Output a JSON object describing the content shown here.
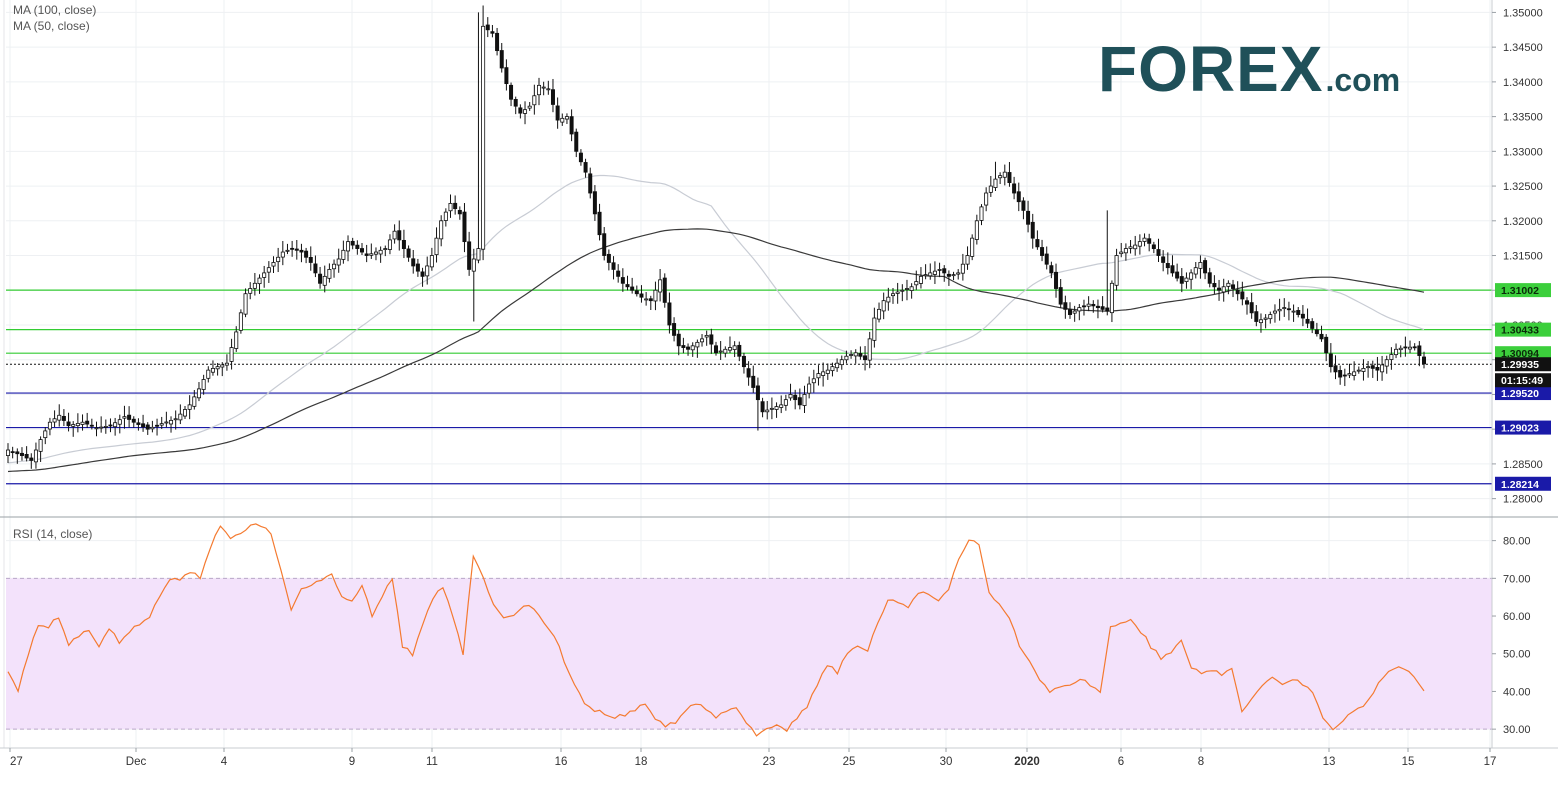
{
  "legend": {
    "ma100": "MA (100, close)",
    "ma50": "MA (50, close)",
    "rsi": "RSI (14, close)"
  },
  "logo": {
    "main": "FOREX",
    "suffix": ".com"
  },
  "colors": {
    "green_line": "#33cc33",
    "blue_line": "#1a1aa8",
    "rsi_line": "#f47a30",
    "rsi_band": "#f3e2fb",
    "ma100": "#3a3a3a",
    "ma50": "#c8ccd4",
    "up_candle": "#ffffff",
    "down_candle": "#111111",
    "last_price_bg": "#111111"
  },
  "chart_data": {
    "type": "candlestick",
    "price_axis": {
      "ylim": [
        1.2775,
        1.3515
      ],
      "ticks": [
        "1.35000",
        "1.34500",
        "1.34000",
        "1.33500",
        "1.33000",
        "1.32500",
        "1.32000",
        "1.31500",
        "1.31000",
        "1.30500",
        "1.30000",
        "1.29500",
        "1.29000",
        "1.28500",
        "1.28000"
      ]
    },
    "x_ticks": [
      "27",
      "Dec",
      "4",
      "9",
      "11",
      "16",
      "18",
      "23",
      "25",
      "30",
      "2020",
      "6",
      "8",
      "13",
      "15",
      "17"
    ],
    "horizontal_levels": [
      {
        "value": 1.31002,
        "label": "1.31002",
        "color": "green"
      },
      {
        "value": 1.30433,
        "label": "1.30433",
        "color": "green"
      },
      {
        "value": 1.30094,
        "label": "1.30094",
        "color": "green"
      },
      {
        "value": 1.2952,
        "label": "1.29520",
        "color": "blue"
      },
      {
        "value": 1.29023,
        "label": "1.29023",
        "color": "blue"
      },
      {
        "value": 1.28214,
        "label": "1.28214",
        "color": "blue"
      }
    ],
    "last_price": {
      "value": 1.29935,
      "label": "1.29935",
      "countdown": "01:15:49"
    },
    "price_anchors": [
      [
        0,
        1.287
      ],
      [
        3,
        1.2862
      ],
      [
        5,
        1.2855
      ],
      [
        7,
        1.2885
      ],
      [
        9,
        1.291
      ],
      [
        11,
        1.292
      ],
      [
        13,
        1.2905
      ],
      [
        16,
        1.291
      ],
      [
        19,
        1.2902
      ],
      [
        22,
        1.2905
      ],
      [
        25,
        1.2918
      ],
      [
        27,
        1.291
      ],
      [
        30,
        1.29
      ],
      [
        33,
        1.2908
      ],
      [
        36,
        1.2915
      ],
      [
        39,
        1.2935
      ],
      [
        41,
        1.2958
      ],
      [
        43,
        1.2985
      ],
      [
        45,
        1.299
      ],
      [
        47,
        1.2995
      ],
      [
        49,
        1.304
      ],
      [
        51,
        1.3095
      ],
      [
        53,
        1.311
      ],
      [
        55,
        1.3125
      ],
      [
        57,
        1.314
      ],
      [
        59,
        1.3155
      ],
      [
        61,
        1.316
      ],
      [
        63,
        1.3155
      ],
      [
        65,
        1.314
      ],
      [
        67,
        1.311
      ],
      [
        69,
        1.313
      ],
      [
        71,
        1.3145
      ],
      [
        73,
        1.317
      ],
      [
        75,
        1.316
      ],
      [
        77,
        1.315
      ],
      [
        79,
        1.3155
      ],
      [
        81,
        1.316
      ],
      [
        83,
        1.3185
      ],
      [
        85,
        1.316
      ],
      [
        87,
        1.3135
      ],
      [
        89,
        1.312
      ],
      [
        91,
        1.315
      ],
      [
        93,
        1.32
      ],
      [
        95,
        1.3225
      ],
      [
        97,
        1.321
      ],
      [
        99,
        1.313
      ],
      [
        101,
        1.316
      ],
      [
        102,
        1.348
      ],
      [
        104,
        1.347
      ],
      [
        106,
        1.342
      ],
      [
        108,
        1.3375
      ],
      [
        110,
        1.3355
      ],
      [
        112,
        1.3365
      ],
      [
        114,
        1.3395
      ],
      [
        116,
        1.339
      ],
      [
        118,
        1.3345
      ],
      [
        120,
        1.335
      ],
      [
        122,
        1.33
      ],
      [
        124,
        1.327
      ],
      [
        126,
        1.321
      ],
      [
        128,
        1.315
      ],
      [
        130,
        1.313
      ],
      [
        132,
        1.311
      ],
      [
        134,
        1.31
      ],
      [
        136,
        1.309
      ],
      [
        138,
        1.3085
      ],
      [
        140,
        1.3115
      ],
      [
        142,
        1.305
      ],
      [
        144,
        1.302
      ],
      [
        146,
        1.3015
      ],
      [
        148,
        1.3025
      ],
      [
        150,
        1.3035
      ],
      [
        152,
        1.301
      ],
      [
        154,
        1.3015
      ],
      [
        156,
        1.302
      ],
      [
        158,
        1.299
      ],
      [
        160,
        1.296
      ],
      [
        162,
        1.2925
      ],
      [
        164,
        1.293
      ],
      [
        166,
        1.2935
      ],
      [
        168,
        1.295
      ],
      [
        170,
        1.2935
      ],
      [
        172,
        1.2965
      ],
      [
        174,
        1.298
      ],
      [
        176,
        1.2985
      ],
      [
        178,
        1.2995
      ],
      [
        180,
        1.3005
      ],
      [
        182,
        1.301
      ],
      [
        184,
        1.3
      ],
      [
        186,
        1.306
      ],
      [
        188,
        1.3085
      ],
      [
        190,
        1.3095
      ],
      [
        192,
        1.31
      ],
      [
        194,
        1.3105
      ],
      [
        196,
        1.312
      ],
      [
        198,
        1.3125
      ],
      [
        200,
        1.313
      ],
      [
        202,
        1.312
      ],
      [
        204,
        1.3125
      ],
      [
        206,
        1.315
      ],
      [
        208,
        1.32
      ],
      [
        210,
        1.324
      ],
      [
        212,
        1.326
      ],
      [
        214,
        1.327
      ],
      [
        216,
        1.324
      ],
      [
        218,
        1.3215
      ],
      [
        220,
        1.3175
      ],
      [
        222,
        1.315
      ],
      [
        224,
        1.3125
      ],
      [
        226,
        1.308
      ],
      [
        228,
        1.3065
      ],
      [
        230,
        1.3075
      ],
      [
        232,
        1.308
      ],
      [
        234,
        1.3075
      ],
      [
        236,
        1.307
      ],
      [
        238,
        1.315
      ],
      [
        240,
        1.316
      ],
      [
        242,
        1.3165
      ],
      [
        244,
        1.3175
      ],
      [
        246,
        1.316
      ],
      [
        248,
        1.314
      ],
      [
        250,
        1.3125
      ],
      [
        252,
        1.311
      ],
      [
        254,
        1.3125
      ],
      [
        256,
        1.314
      ],
      [
        258,
        1.311
      ],
      [
        260,
        1.31
      ],
      [
        262,
        1.311
      ],
      [
        264,
        1.3095
      ],
      [
        266,
        1.308
      ],
      [
        268,
        1.3055
      ],
      [
        270,
        1.306
      ],
      [
        272,
        1.307
      ],
      [
        274,
        1.3075
      ],
      [
        276,
        1.307
      ],
      [
        278,
        1.306
      ],
      [
        280,
        1.3045
      ],
      [
        282,
        1.303
      ],
      [
        284,
        1.299
      ],
      [
        286,
        1.2975
      ],
      [
        288,
        1.298
      ],
      [
        290,
        1.2985
      ],
      [
        292,
        1.299
      ],
      [
        294,
        1.2985
      ],
      [
        296,
        1.3
      ],
      [
        298,
        1.3015
      ],
      [
        300,
        1.3018
      ],
      [
        302,
        1.3018
      ],
      [
        304,
        1.2994
      ]
    ],
    "rsi": {
      "title": "RSI (14, close)",
      "ylim": [
        25,
        86
      ],
      "ticks": [
        "80.00",
        "70.00",
        "60.00",
        "50.00",
        "40.00",
        "30.00"
      ],
      "band": [
        30,
        70
      ],
      "anchors": [
        [
          0,
          45
        ],
        [
          2,
          40
        ],
        [
          4,
          50
        ],
        [
          6,
          58
        ],
        [
          8,
          57
        ],
        [
          10,
          60
        ],
        [
          12,
          52
        ],
        [
          14,
          55
        ],
        [
          16,
          56
        ],
        [
          18,
          52
        ],
        [
          20,
          57
        ],
        [
          22,
          53
        ],
        [
          24,
          56
        ],
        [
          26,
          58
        ],
        [
          28,
          60
        ],
        [
          30,
          65
        ],
        [
          32,
          70
        ],
        [
          34,
          70
        ],
        [
          36,
          72
        ],
        [
          38,
          70
        ],
        [
          40,
          78
        ],
        [
          42,
          84
        ],
        [
          44,
          81
        ],
        [
          46,
          82
        ],
        [
          48,
          84
        ],
        [
          50,
          84
        ],
        [
          52,
          82
        ],
        [
          54,
          72
        ],
        [
          56,
          62
        ],
        [
          58,
          67
        ],
        [
          60,
          68
        ],
        [
          62,
          70
        ],
        [
          64,
          71
        ],
        [
          66,
          65
        ],
        [
          68,
          64
        ],
        [
          70,
          68
        ],
        [
          72,
          60
        ],
        [
          74,
          65
        ],
        [
          76,
          70
        ],
        [
          78,
          52
        ],
        [
          80,
          50
        ],
        [
          82,
          58
        ],
        [
          84,
          65
        ],
        [
          86,
          68
        ],
        [
          88,
          60
        ],
        [
          90,
          50
        ],
        [
          92,
          76
        ],
        [
          94,
          70
        ],
        [
          96,
          63
        ],
        [
          98,
          60
        ],
        [
          100,
          60
        ],
        [
          102,
          63
        ],
        [
          104,
          62
        ],
        [
          106,
          58
        ],
        [
          108,
          55
        ],
        [
          110,
          48
        ],
        [
          112,
          42
        ],
        [
          114,
          37
        ],
        [
          116,
          35
        ],
        [
          118,
          34
        ],
        [
          120,
          33
        ],
        [
          122,
          34
        ],
        [
          124,
          35
        ],
        [
          126,
          37
        ],
        [
          128,
          33
        ],
        [
          130,
          31
        ],
        [
          132,
          32
        ],
        [
          134,
          35
        ],
        [
          136,
          37
        ],
        [
          138,
          35
        ],
        [
          140,
          33
        ],
        [
          142,
          35
        ],
        [
          144,
          36
        ],
        [
          146,
          32
        ],
        [
          148,
          28
        ],
        [
          150,
          30
        ],
        [
          152,
          31
        ],
        [
          154,
          30
        ],
        [
          156,
          33
        ],
        [
          158,
          36
        ],
        [
          160,
          42
        ],
        [
          162,
          47
        ],
        [
          164,
          45
        ],
        [
          166,
          50
        ],
        [
          168,
          52
        ],
        [
          170,
          51
        ],
        [
          172,
          58
        ],
        [
          174,
          64
        ],
        [
          176,
          64
        ],
        [
          178,
          62
        ],
        [
          180,
          66
        ],
        [
          182,
          66
        ],
        [
          184,
          64
        ],
        [
          186,
          67
        ],
        [
          188,
          75
        ],
        [
          190,
          80
        ],
        [
          192,
          79
        ],
        [
          194,
          66
        ],
        [
          196,
          63
        ],
        [
          198,
          60
        ],
        [
          200,
          52
        ],
        [
          202,
          48
        ],
        [
          204,
          43
        ],
        [
          206,
          40
        ],
        [
          208,
          41
        ],
        [
          210,
          42
        ],
        [
          212,
          43
        ],
        [
          214,
          42
        ],
        [
          216,
          40
        ],
        [
          218,
          57
        ],
        [
          220,
          58
        ],
        [
          222,
          59
        ],
        [
          224,
          56
        ],
        [
          226,
          52
        ],
        [
          228,
          49
        ],
        [
          230,
          50
        ],
        [
          232,
          54
        ],
        [
          234,
          46
        ],
        [
          236,
          45
        ],
        [
          238,
          46
        ],
        [
          240,
          44
        ],
        [
          242,
          46
        ],
        [
          244,
          35
        ],
        [
          246,
          38
        ],
        [
          248,
          42
        ],
        [
          250,
          44
        ],
        [
          252,
          42
        ],
        [
          254,
          43
        ],
        [
          256,
          42
        ],
        [
          258,
          40
        ],
        [
          260,
          33
        ],
        [
          262,
          30
        ],
        [
          264,
          32
        ],
        [
          266,
          35
        ],
        [
          268,
          36
        ],
        [
          270,
          40
        ],
        [
          272,
          44
        ],
        [
          274,
          46
        ],
        [
          276,
          46
        ],
        [
          278,
          44
        ],
        [
          280,
          40
        ]
      ]
    }
  }
}
